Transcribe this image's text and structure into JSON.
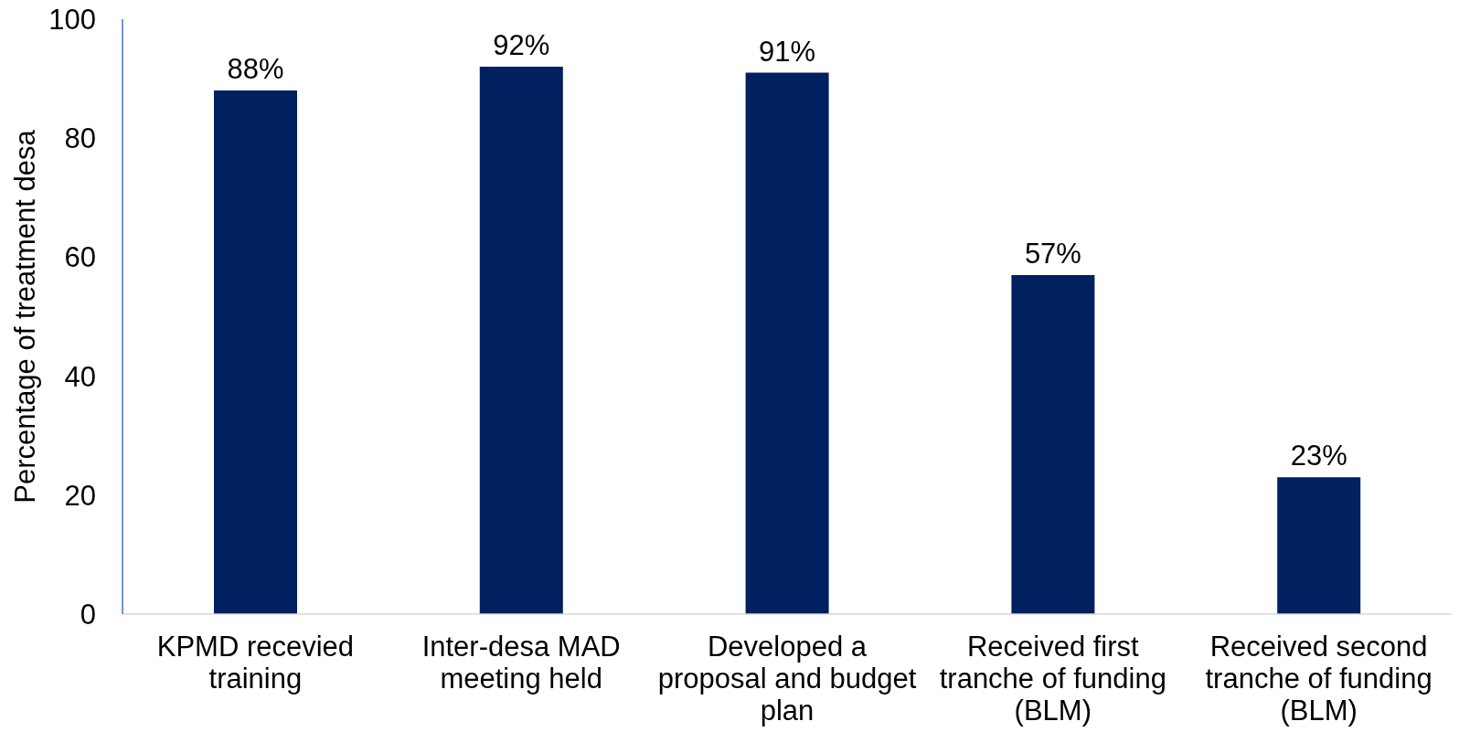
{
  "chart_data": {
    "type": "bar",
    "ylabel": "Percentage of treatment desa",
    "categories": [
      "KPMD recevied training",
      "Inter-desa MAD meeting held",
      "Developed a proposal and budget plan",
      "Received first tranche of funding (BLM)",
      "Received second tranche of funding (BLM)"
    ],
    "values": [
      88,
      92,
      91,
      57,
      23
    ],
    "value_labels": [
      "88%",
      "92%",
      "91%",
      "57%",
      "23%"
    ],
    "color": "#002060",
    "ylim": [
      0,
      100
    ],
    "yticks": [
      0,
      20,
      40,
      60,
      80,
      100
    ]
  }
}
